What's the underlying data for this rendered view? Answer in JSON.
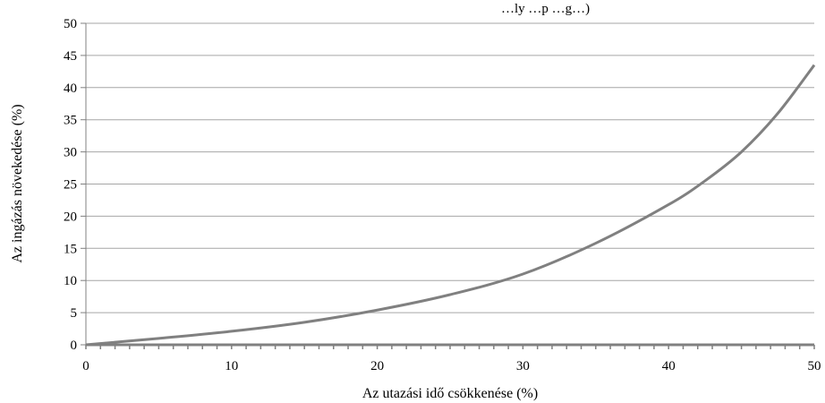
{
  "chart_data": {
    "type": "line",
    "title": "…ly   …p     …g…)",
    "xlabel": "Az utazási idő csökkenése (%)",
    "ylabel": "Az ingázás növekedése (%)",
    "xlim": [
      0,
      50
    ],
    "ylim": [
      0,
      50
    ],
    "x_ticks": [
      0,
      10,
      20,
      30,
      40,
      50
    ],
    "y_ticks": [
      0,
      5,
      10,
      15,
      20,
      25,
      30,
      35,
      40,
      45,
      50
    ],
    "x_tick_labels": [
      "0",
      "10",
      "20",
      "30",
      "40",
      "50"
    ],
    "y_tick_labels": [
      "0",
      "5",
      "10",
      "15",
      "20",
      "25",
      "30",
      "35",
      "40",
      "45",
      "50"
    ],
    "grid": "horizontal",
    "line_color": "#808080",
    "series": [
      {
        "x": [
          0,
          5,
          10,
          15,
          20,
          25,
          30,
          35,
          40,
          42.5,
          45,
          47.5,
          50
        ],
        "y": [
          0,
          1.0,
          2.1,
          3.5,
          5.4,
          7.8,
          11.0,
          15.8,
          21.8,
          25.5,
          30.0,
          36.0,
          43.5
        ]
      }
    ]
  }
}
